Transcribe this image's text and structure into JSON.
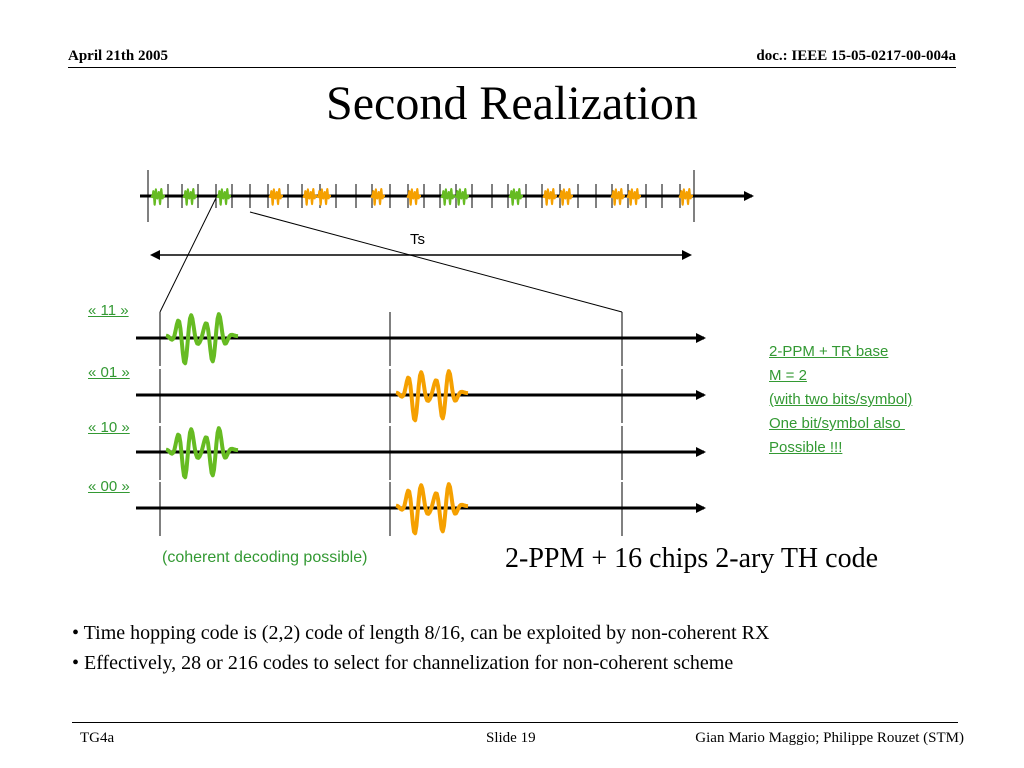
{
  "header": {
    "date": "April 21th 2005",
    "doc_id": "doc.: IEEE 15-05-0217-00-004a"
  },
  "slide": {
    "title": "Second Realization"
  },
  "diagram": {
    "period_label": "Ts",
    "symbols": [
      "« 11 »",
      "« 01 »",
      "« 10 »",
      "« 00 »"
    ],
    "coherent_note": "(coherent decoding possible)",
    "side_notes": [
      "2-PPM + TR base",
      "M = 2",
      "(with two bits/symbol)",
      "One bit/symbol also ",
      "Possible !!!"
    ],
    "scheme_label": "2-PPM + 16 chips 2-ary TH code",
    "colors": {
      "green_pulse": "#66bb22",
      "orange_pulse": "#f5a000",
      "label_green": "#339933"
    }
  },
  "bullets": [
    "• Time hopping code is (2,2) code of length 8/16, can be exploited by non-coherent RX",
    "• Effectively, 28 or 216 codes to select for channelization for non-coherent scheme"
  ],
  "footer": {
    "left": "TG4a",
    "center": "Slide 19",
    "right": "Gian Mario Maggio; Philippe Rouzet (STM)"
  }
}
